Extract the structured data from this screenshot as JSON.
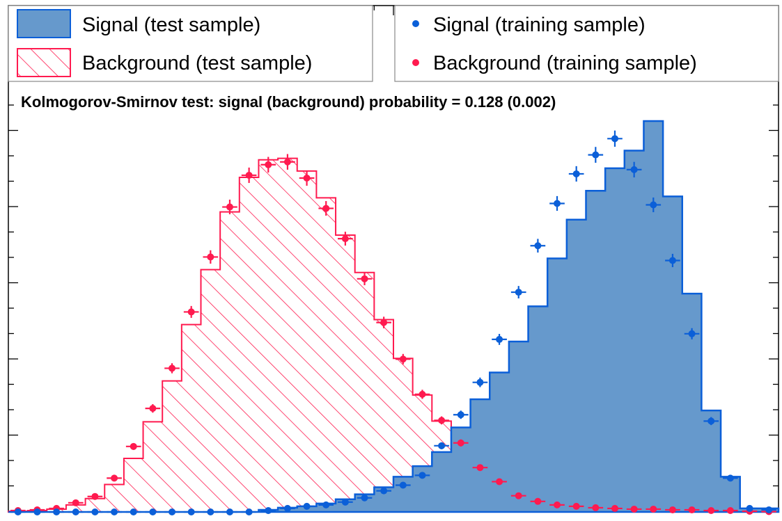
{
  "chart_data": {
    "type": "bar",
    "title": "",
    "xlabel": "",
    "ylabel": "",
    "nbins": 40,
    "xlim": [
      0,
      40
    ],
    "ylim": [
      0,
      100
    ],
    "grid": false,
    "legend_position": "top",
    "annotation": "Kolmogorov-Smirnov test: signal (background) probability = 0.128 (0.002)",
    "colors": {
      "signal_fill": "#6699cc",
      "signal_line": "#0b5fd8",
      "background_line": "#ff1a4f",
      "signal_marker": "#0b5fd8",
      "background_marker": "#ff1a4f"
    },
    "legend": {
      "signal_test": "Signal (test sample)",
      "background_test": "Background (test sample)",
      "signal_training": "Signal (training sample)",
      "background_training": "Background (training sample)"
    },
    "series": [
      {
        "name": "Signal (test sample)",
        "style": "filled-histogram",
        "values": [
          0,
          0,
          0,
          0,
          0,
          0,
          0,
          0,
          0,
          0,
          0,
          0,
          0,
          0.3,
          0.6,
          0.8,
          1.2,
          1.8,
          2.5,
          3.5,
          5,
          6.5,
          8.5,
          12,
          16,
          19.8,
          24.2,
          29.2,
          36,
          41.5,
          45.6,
          48.8,
          51.3,
          55.5,
          44.8,
          31,
          14.4,
          5,
          0.5,
          0.5
        ]
      },
      {
        "name": "Background (test sample)",
        "style": "hatched-histogram",
        "values": [
          0.1,
          0.2,
          0.4,
          1.0,
          1.9,
          3.9,
          7.6,
          12.8,
          18.6,
          26.6,
          34.4,
          42.6,
          47.5,
          50,
          50.2,
          48.4,
          44.6,
          39.3,
          34,
          27.3,
          21.8,
          16.6,
          12.9,
          9.3,
          6.9,
          4.3,
          2.7,
          1.7,
          1.2,
          0.9,
          0.7,
          0.5,
          0.5,
          0.4,
          0.3,
          0.3,
          0.2,
          0.2,
          0.1,
          0.05
        ]
      },
      {
        "name": "Signal (training sample)",
        "style": "points",
        "values": [
          0,
          0,
          0,
          0,
          0,
          0,
          0,
          0,
          0,
          0,
          0,
          0,
          0,
          0.2,
          0.5,
          0.8,
          1,
          1.4,
          2,
          3,
          3.8,
          5.2,
          9.4,
          13.8,
          18.4,
          24.5,
          31.2,
          37.8,
          43.8,
          48,
          50.7,
          53,
          48.6,
          43.6,
          35.7,
          25.3,
          12.9,
          4.8,
          0.5,
          0.3
        ]
      },
      {
        "name": "Background (training sample)",
        "style": "points",
        "values": [
          0.2,
          0.3,
          0.5,
          1.3,
          2.2,
          4.8,
          9.3,
          14.7,
          20.4,
          28.4,
          36.2,
          43.3,
          47.8,
          49.3,
          49.7,
          47.4,
          43.1,
          38.8,
          33.1,
          26.9,
          21.7,
          16.7,
          13,
          9.8,
          6.3,
          4.3,
          2.3,
          1.5,
          1,
          0.8,
          0.6,
          0.5,
          0.4,
          0.4,
          0.3,
          0.3,
          0.2,
          0.2,
          0.1,
          0.05
        ]
      }
    ]
  }
}
